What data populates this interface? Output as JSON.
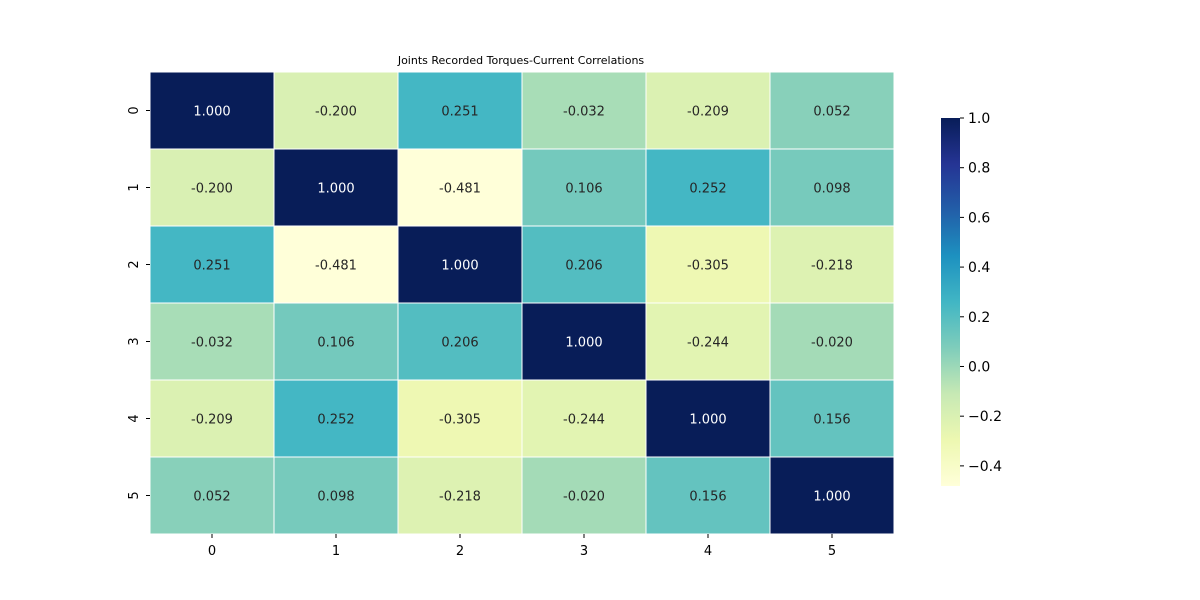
{
  "chart_data": {
    "type": "heatmap",
    "title": "Joints Recorded Torques-Current Correlations",
    "xlabel": "",
    "ylabel": "",
    "x_labels": [
      "0",
      "1",
      "2",
      "3",
      "4",
      "5"
    ],
    "y_labels": [
      "0",
      "1",
      "2",
      "3",
      "4",
      "5"
    ],
    "values": [
      [
        1.0,
        -0.2,
        0.251,
        -0.032,
        -0.209,
        0.052
      ],
      [
        -0.2,
        1.0,
        -0.481,
        0.106,
        0.252,
        0.098
      ],
      [
        0.251,
        -0.481,
        1.0,
        0.206,
        -0.305,
        -0.218
      ],
      [
        -0.032,
        0.106,
        0.206,
        1.0,
        -0.244,
        -0.02
      ],
      [
        -0.209,
        0.252,
        -0.305,
        -0.244,
        1.0,
        0.156
      ],
      [
        0.052,
        0.098,
        -0.218,
        -0.02,
        0.156,
        1.0
      ]
    ],
    "value_format": "0.000",
    "colormap": "YlGnBu",
    "vmin": -0.481,
    "vmax": 1.0,
    "colorbar": {
      "ticks": [
        1.0,
        0.8,
        0.6,
        0.4,
        0.2,
        0.0,
        -0.2,
        -0.4
      ],
      "tick_labels": [
        "1.0",
        "0.8",
        "0.6",
        "0.4",
        "0.2",
        "0.0",
        "−0.2",
        "−0.4"
      ],
      "placement": "right"
    },
    "cell_border_color": "#ffffff",
    "grid": false
  }
}
